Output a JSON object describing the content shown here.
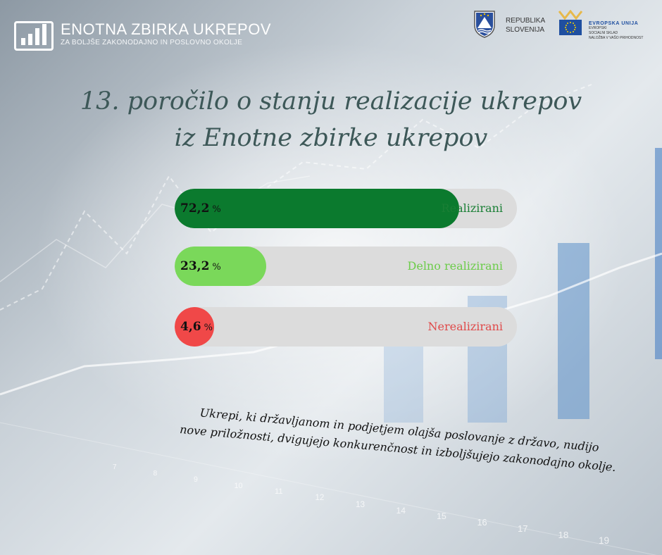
{
  "brand": {
    "title": "ENOTNA ZBIRKA UKREPOV",
    "subtitle": "ZA BOLJŠE ZAKONODAJNO IN POSLOVNO OKOLJE"
  },
  "government": {
    "line1": "REPUBLIKA",
    "line2": "SLOVENIJA"
  },
  "eu": {
    "line1": "EVROPSKA UNIJA",
    "line2": "EVROPSKI",
    "line3": "SOCIALNI SKLAD",
    "line4": "NALOŽBA V VAŠO PRIHODNOST"
  },
  "title": {
    "line1": "13. poročilo o stanju realizacije ukrepov",
    "line2": "iz Enotne zbirke ukrepov"
  },
  "chart_data": {
    "type": "bar",
    "orientation": "horizontal",
    "unit": "%",
    "categories": [
      "Realizirani",
      "Delno realizirani",
      "Nerealizirani"
    ],
    "values": [
      72.2,
      23.2,
      4.6
    ],
    "value_labels": [
      "72,2",
      "23,2",
      "4,6"
    ],
    "colors": [
      "#0b7a2e",
      "#7ad85a",
      "#f04848"
    ],
    "label_colors": [
      "#1a7f35",
      "#6ccc4a",
      "#e04a4a"
    ],
    "xlim": [
      0,
      100
    ],
    "grid": false
  },
  "caption": {
    "line1": "Ukrepi, ki državljanom in podjetjem olajša poslovanje z državo, nudijo",
    "line2": "nove priložnosti, dvigujejo konkurenčnost in izboljšujejo zakonodajno okolje."
  },
  "background_axis": {
    "ticks": [
      "7",
      "8",
      "9",
      "10",
      "11",
      "12",
      "13",
      "14",
      "15",
      "16",
      "17",
      "18",
      "19"
    ]
  }
}
